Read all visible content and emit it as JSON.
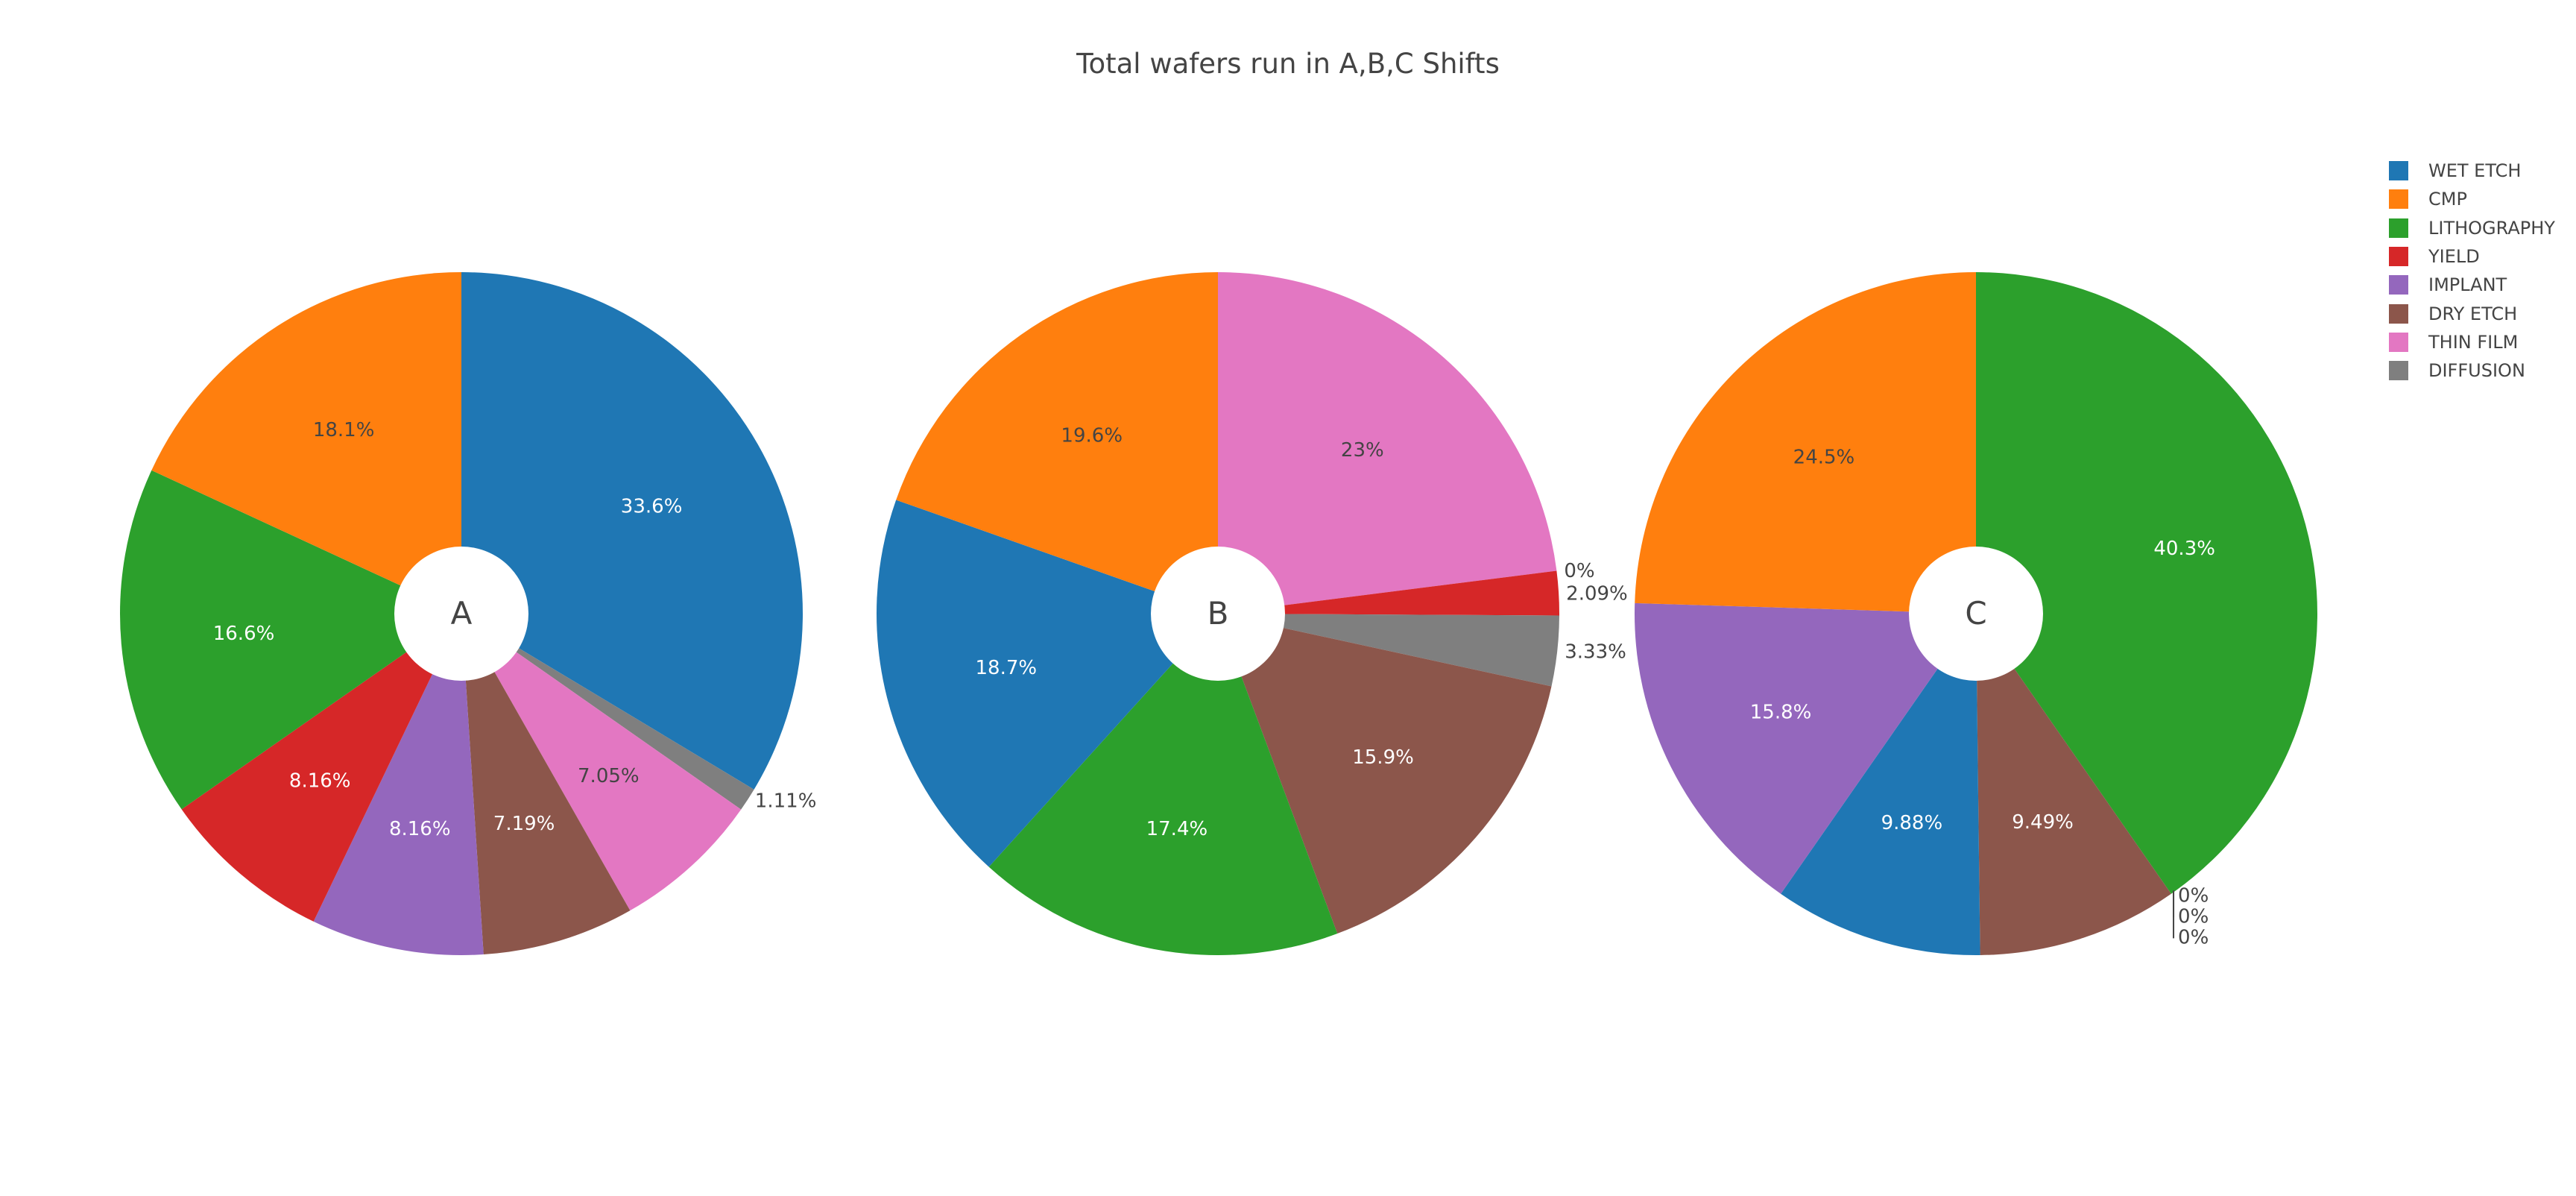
{
  "chart_data": {
    "type": "pie",
    "title": "Total wafers run in A,B,C Shifts",
    "legend_position": "top-right",
    "hole": true,
    "categories": [
      "WET ETCH",
      "CMP",
      "LITHOGRAPHY",
      "YIELD",
      "IMPLANT",
      "DRY ETCH",
      "THIN FILM",
      "DIFFUSION"
    ],
    "colors": {
      "WET ETCH": "#1f77b4",
      "CMP": "#ff7f0e",
      "LITHOGRAPHY": "#2ca02c",
      "YIELD": "#d62728",
      "IMPLANT": "#9467bd",
      "DRY ETCH": "#8c564b",
      "THIN FILM": "#e377c2",
      "DIFFUSION": "#7f7f7f"
    },
    "pies": [
      {
        "center_label": "A",
        "slices": [
          {
            "category": "WET ETCH",
            "value": 33.6,
            "label": "33.6%"
          },
          {
            "category": "DIFFUSION",
            "value": 1.11,
            "label": "1.11%"
          },
          {
            "category": "THIN FILM",
            "value": 7.05,
            "label": "7.05%"
          },
          {
            "category": "DRY ETCH",
            "value": 7.19,
            "label": "7.19%"
          },
          {
            "category": "IMPLANT",
            "value": 8.16,
            "label": "8.16%"
          },
          {
            "category": "YIELD",
            "value": 8.16,
            "label": "8.16%"
          },
          {
            "category": "LITHOGRAPHY",
            "value": 16.6,
            "label": "16.6%"
          },
          {
            "category": "CMP",
            "value": 18.1,
            "label": "18.1%"
          }
        ]
      },
      {
        "center_label": "B",
        "slices": [
          {
            "category": "THIN FILM",
            "value": 23,
            "label": "23%"
          },
          {
            "category": "WET ETCH",
            "value": 0,
            "label": "0%"
          },
          {
            "category": "YIELD",
            "value": 2.09,
            "label": "2.09%"
          },
          {
            "category": "DIFFUSION",
            "value": 3.33,
            "label": "3.33%"
          },
          {
            "category": "DRY ETCH",
            "value": 15.9,
            "label": "15.9%"
          },
          {
            "category": "LITHOGRAPHY",
            "value": 17.4,
            "label": "17.4%"
          },
          {
            "category": "WET ETCH",
            "value": 18.7,
            "label": "18.7%"
          },
          {
            "category": "CMP",
            "value": 19.6,
            "label": "19.6%"
          }
        ]
      },
      {
        "center_label": "C",
        "slices": [
          {
            "category": "LITHOGRAPHY",
            "value": 40.3,
            "label": "40.3%"
          },
          {
            "category": "YIELD",
            "value": 0,
            "label": "0%"
          },
          {
            "category": "THIN FILM",
            "value": 0,
            "label": "0%"
          },
          {
            "category": "DIFFUSION",
            "value": 0,
            "label": "0%"
          },
          {
            "category": "DRY ETCH",
            "value": 9.49,
            "label": "9.49%"
          },
          {
            "category": "WET ETCH",
            "value": 9.88,
            "label": "9.88%"
          },
          {
            "category": "IMPLANT",
            "value": 15.8,
            "label": "15.8%"
          },
          {
            "category": "CMP",
            "value": 24.5,
            "label": "24.5%"
          }
        ]
      }
    ]
  }
}
